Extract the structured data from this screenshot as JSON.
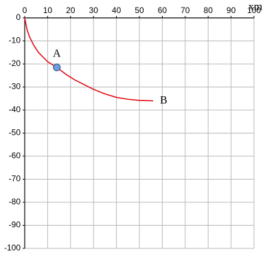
{
  "chart_data": {
    "type": "line",
    "x_label": "xm",
    "xlim": [
      0,
      100
    ],
    "xticks": [
      0,
      10,
      20,
      30,
      40,
      50,
      60,
      70,
      80,
      90,
      100
    ],
    "ylim": [
      -100,
      0
    ],
    "yticks": [
      0,
      -10,
      -20,
      -30,
      -40,
      -50,
      -60,
      -70,
      -80,
      -90,
      -100
    ],
    "grid": true,
    "series": [
      {
        "color": "#e0101a",
        "x": [
          0,
          1,
          2,
          4,
          6,
          8,
          10,
          14,
          18,
          22,
          26,
          30,
          35,
          40,
          45,
          50,
          56
        ],
        "values": [
          0,
          -5,
          -8,
          -12,
          -15,
          -17,
          -19,
          -21.5,
          -24.5,
          -27,
          -29,
          -31,
          -33,
          -34.5,
          -35.3,
          -35.8,
          -36
        ]
      }
    ],
    "marker": {
      "x": 14,
      "y": -21.5,
      "color": "#6f9fd8"
    },
    "annotations": [
      "A",
      "B"
    ]
  }
}
